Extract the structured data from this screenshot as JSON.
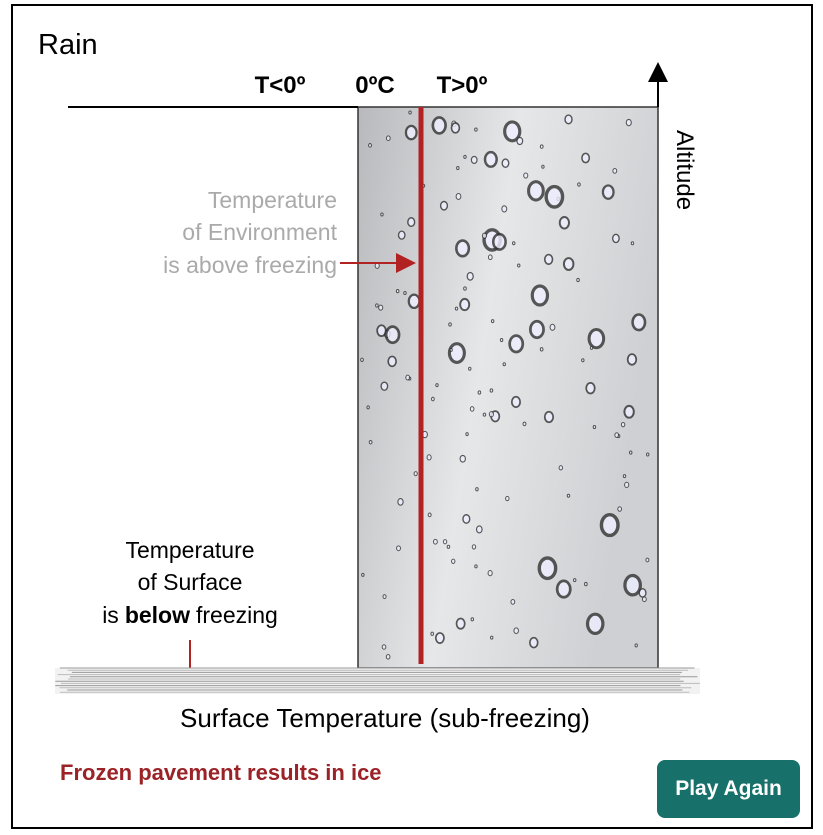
{
  "header": {
    "title": "Rain"
  },
  "temperature_labels": {
    "below": "T<0º",
    "zero": "0ºC",
    "above": "T>0º"
  },
  "axis_label": "Altitude",
  "environment_label": [
    "Temperature",
    "of Environment",
    "is above freezing"
  ],
  "surface_label": {
    "lines": [
      "Temperature",
      "of Surface"
    ],
    "last_line": {
      "before": "is",
      "bold": "below",
      "after": "freezing"
    }
  },
  "ground_label": "Surface Temperature (sub-freezing)",
  "result": "Frozen pavement results in ice",
  "button": "Play Again"
}
